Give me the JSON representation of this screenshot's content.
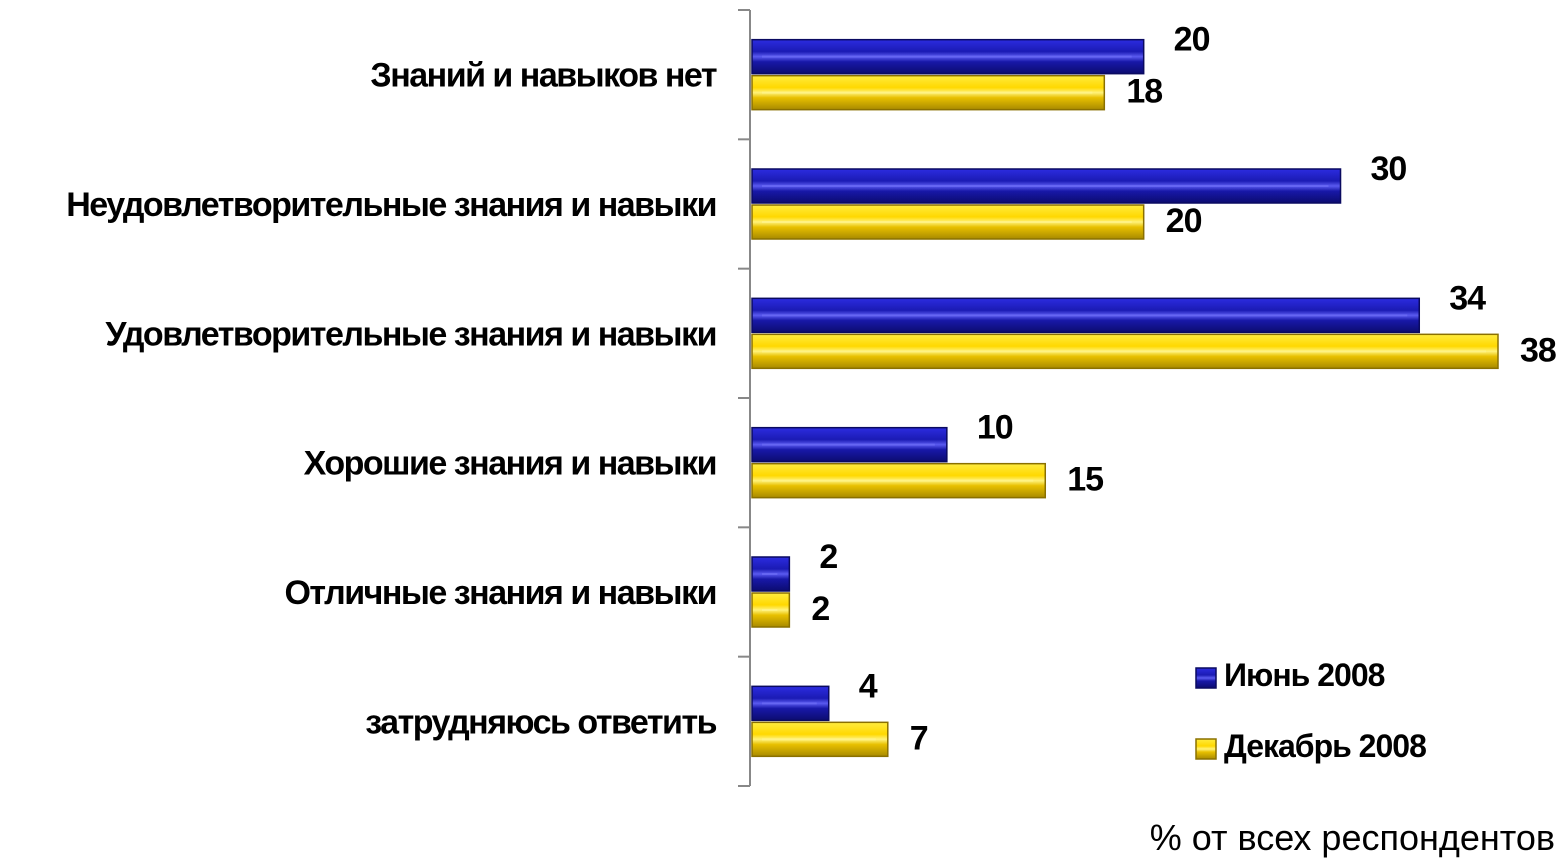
{
  "chart_data": {
    "type": "bar",
    "orientation": "horizontal",
    "categories": [
      "Знаний и навыков нет",
      "Неудовлетворительные знания и навыки",
      "Удовлетворительные знания и навыки",
      "Хорошие знания и навыки",
      "Отличные знания и навыки",
      "затрудняюсь ответить"
    ],
    "series": [
      {
        "name": "Июнь 2008",
        "values": [
          20,
          30,
          34,
          10,
          2,
          4
        ],
        "color": "#1a1aa8"
      },
      {
        "name": "Декабрь 2008",
        "values": [
          18,
          20,
          38,
          15,
          2,
          7
        ],
        "color": "#ffd700"
      }
    ],
    "xlim": [
      0,
      38
    ],
    "unit_label": "% от всех респондентов",
    "legend_position": "bottom-right",
    "grid": false,
    "data_labels": true
  }
}
